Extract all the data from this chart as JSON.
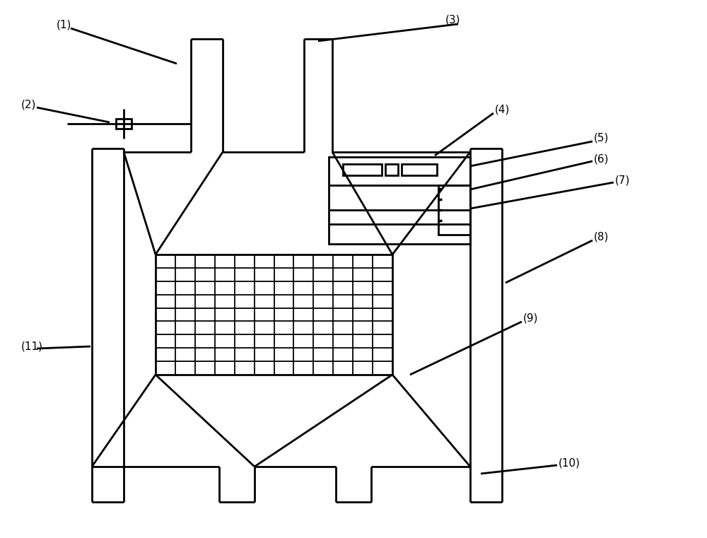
{
  "bg_color": "#ffffff",
  "line_color": "#000000",
  "lw": 2.0,
  "fs": 11
}
